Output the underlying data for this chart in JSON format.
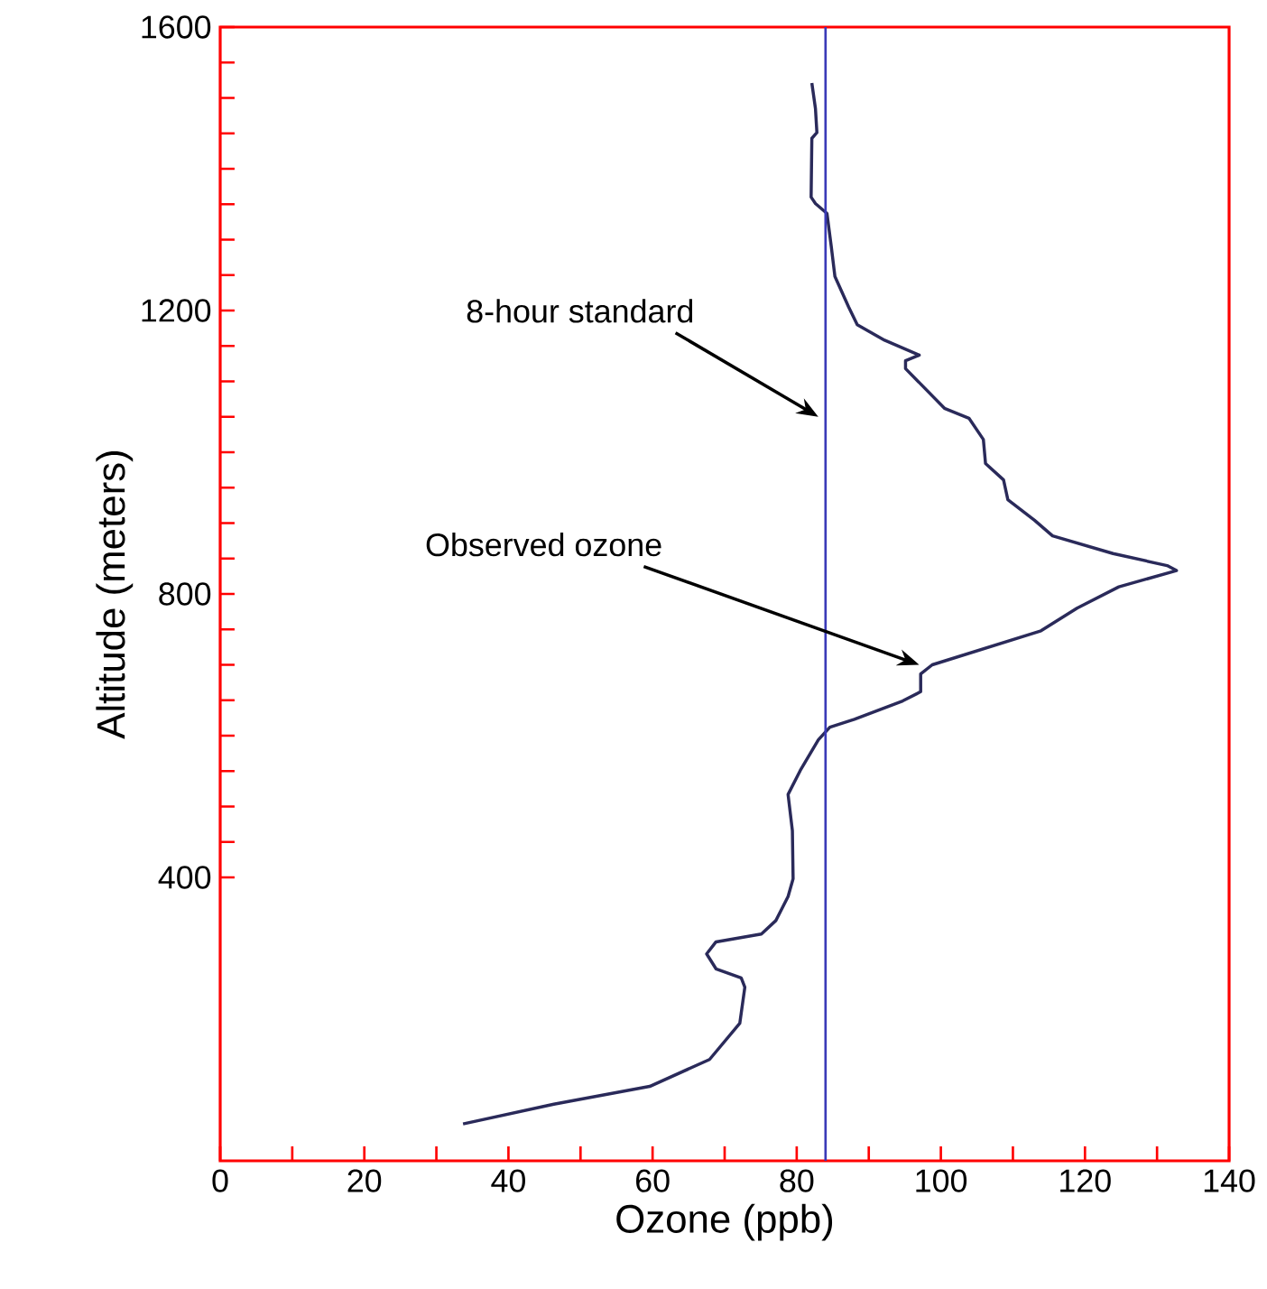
{
  "chart_data": {
    "type": "line",
    "xlabel": "Ozone (ppb)",
    "ylabel": "Altitude (meters)",
    "xlim": [
      0,
      140
    ],
    "ylim": [
      0,
      1600
    ],
    "xticks": [
      0,
      20,
      40,
      60,
      80,
      100,
      120,
      140
    ],
    "yticks": [
      400,
      800,
      1200,
      1600
    ],
    "series": [
      {
        "color": "#2a2a5a",
        "x": [
          33.7,
          46.3,
          59.6,
          67.9,
          72.1,
          72.8,
          72.3,
          68.8,
          67.5,
          68.8,
          75.1,
          77.1,
          78.8,
          79.5,
          79.4,
          78.8,
          80.5,
          83.0,
          84.6,
          88.0,
          94.7,
          97.2,
          97.2,
          98.8,
          113.9,
          118.9,
          124.7,
          132.7,
          131.4,
          123.9,
          115.5,
          113.0,
          109.3,
          108.7,
          106.2,
          105.9,
          103.9,
          100.5,
          95.1,
          95.1,
          97.0,
          92.2,
          88.4,
          87.2,
          85.3,
          84.8,
          84.2,
          82.6,
          82.0,
          82.1,
          82.8,
          82.6,
          82.1
        ],
        "values": [
          52,
          80,
          105,
          143,
          194,
          245,
          258,
          271,
          292,
          309,
          320,
          339,
          373,
          398,
          466,
          517,
          551,
          594,
          612,
          623,
          649,
          662,
          687,
          700,
          748,
          780,
          810,
          833,
          840,
          857,
          882,
          904,
          933,
          961,
          984,
          1018,
          1048,
          1062,
          1118,
          1129,
          1137,
          1158,
          1180,
          1205,
          1248,
          1290,
          1337,
          1351,
          1360,
          1443,
          1451,
          1485,
          1521
        ]
      }
    ],
    "ref_lines": [
      {
        "axis": "x",
        "value": 84,
        "color": "#3a3ab8"
      }
    ],
    "annotations": [
      {
        "text": "8-hour standard",
        "x": 83,
        "y": 1050
      },
      {
        "text": "Observed ozone",
        "x": 97,
        "y": 700
      }
    ],
    "grid": false,
    "marker": "none",
    "line_style": "solid"
  }
}
